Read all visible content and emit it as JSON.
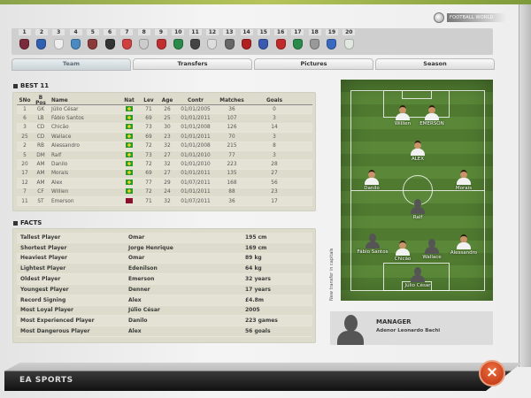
{
  "header": {
    "logo_text": "FOOTBALL WORLD"
  },
  "clubs": [
    {
      "num": "1",
      "color": "#7a2a3a"
    },
    {
      "num": "2",
      "color": "#3060b0"
    },
    {
      "num": "3",
      "color": "#eeeeee"
    },
    {
      "num": "4",
      "color": "#4a8ac0"
    },
    {
      "num": "5",
      "color": "#8a3a3a"
    },
    {
      "num": "6",
      "color": "#333333"
    },
    {
      "num": "7",
      "color": "#d04040"
    },
    {
      "num": "8",
      "color": "#cccccc"
    },
    {
      "num": "9",
      "color": "#c03030"
    },
    {
      "num": "10",
      "color": "#2a8a4a"
    },
    {
      "num": "11",
      "color": "#444444"
    },
    {
      "num": "12",
      "color": "#dddddd"
    },
    {
      "num": "13",
      "color": "#666666"
    },
    {
      "num": "14",
      "color": "#b02020"
    },
    {
      "num": "15",
      "color": "#3a5ab0"
    },
    {
      "num": "16",
      "color": "#c02a2a"
    },
    {
      "num": "17",
      "color": "#2a8a4a"
    },
    {
      "num": "18",
      "color": "#999999"
    },
    {
      "num": "19",
      "color": "#3a6ac0"
    },
    {
      "num": "20",
      "color": "#e0e8e0"
    }
  ],
  "tabs": [
    {
      "label": "Team",
      "active": true
    },
    {
      "label": "Transfers"
    },
    {
      "label": "Pictures"
    },
    {
      "label": "Season"
    }
  ],
  "best11": {
    "title": "BEST 11",
    "headers": [
      "SNo",
      "B Pos",
      "Name",
      "Nat",
      "Lev",
      "Age",
      "Contr",
      "Matches",
      "Goals"
    ],
    "rows": [
      {
        "sno": "1",
        "pos": "GK",
        "name": "Júlio César",
        "nat": "brazil-flag",
        "lev": "71",
        "age": "26",
        "contr": "01/01/2005",
        "matches": "36",
        "goals": "0"
      },
      {
        "sno": "6",
        "pos": "LB",
        "name": "Fábio Santos",
        "nat": "brazil-flag",
        "lev": "69",
        "age": "25",
        "contr": "01/01/2011",
        "matches": "107",
        "goals": "3"
      },
      {
        "sno": "3",
        "pos": "CD",
        "name": "Chicão",
        "nat": "brazil-flag",
        "lev": "73",
        "age": "30",
        "contr": "01/01/2008",
        "matches": "126",
        "goals": "14"
      },
      {
        "sno": "25",
        "pos": "CD",
        "name": "Wallace",
        "nat": "brazil-flag",
        "lev": "69",
        "age": "23",
        "contr": "01/01/2011",
        "matches": "70",
        "goals": "3"
      },
      {
        "sno": "2",
        "pos": "RB",
        "name": "Alessandro",
        "nat": "brazil-flag",
        "lev": "72",
        "age": "32",
        "contr": "01/01/2008",
        "matches": "215",
        "goals": "8"
      },
      {
        "sno": "5",
        "pos": "DM",
        "name": "Ralf",
        "nat": "brazil-flag",
        "lev": "73",
        "age": "27",
        "contr": "01/01/2010",
        "matches": "77",
        "goals": "3"
      },
      {
        "sno": "20",
        "pos": "AM",
        "name": "Danilo",
        "nat": "brazil-flag",
        "lev": "72",
        "age": "32",
        "contr": "01/01/2010",
        "matches": "223",
        "goals": "28"
      },
      {
        "sno": "17",
        "pos": "AM",
        "name": "Morais",
        "nat": "brazil-flag",
        "lev": "69",
        "age": "27",
        "contr": "01/01/2011",
        "matches": "135",
        "goals": "27"
      },
      {
        "sno": "12",
        "pos": "AM",
        "name": "Alex",
        "nat": "brazil-flag",
        "lev": "77",
        "age": "29",
        "contr": "01/07/2011",
        "matches": "168",
        "goals": "56"
      },
      {
        "sno": "7",
        "pos": "CF",
        "name": "Willien",
        "nat": "brazil-flag",
        "lev": "72",
        "age": "24",
        "contr": "01/01/2011",
        "matches": "88",
        "goals": "23"
      },
      {
        "sno": "11",
        "pos": "ST",
        "name": "Emerson",
        "nat": "other-flag",
        "lev": "71",
        "age": "32",
        "contr": "01/07/2011",
        "matches": "36",
        "goals": "17"
      }
    ]
  },
  "facts": {
    "title": "FACTS",
    "rows": [
      {
        "label": "Tallest Player",
        "player": "Omar",
        "value": "195 cm"
      },
      {
        "label": "Shortest Player",
        "player": "Jorge Henrique",
        "value": "169 cm"
      },
      {
        "label": "Heaviest Player",
        "player": "Omar",
        "value": "89 kg"
      },
      {
        "label": "Lightest Player",
        "player": "Edenilson",
        "value": "64 kg"
      },
      {
        "label": "Oldest Player",
        "player": "Emerson",
        "value": "32 years"
      },
      {
        "label": "Youngest Player",
        "player": "Denner",
        "value": "17 years"
      },
      {
        "label": "Record Signing",
        "player": "Alex",
        "value": "£4.8m"
      },
      {
        "label": "Most Loyal Player",
        "player": "Júlio César",
        "value": "2005"
      },
      {
        "label": "Most Experienced Player",
        "player": "Danilo",
        "value": "223 games"
      },
      {
        "label": "Most Dangerous Player",
        "player": "Alex",
        "value": "56 goals"
      }
    ]
  },
  "pitch": {
    "note": "New transfer in capitals",
    "players": [
      {
        "name": "Willien",
        "photo": true
      },
      {
        "name": "EMERSON",
        "photo": true
      },
      {
        "name": "ALEX",
        "photo": true
      },
      {
        "name": "Danilo",
        "photo": true
      },
      {
        "name": "Morais",
        "photo": true
      },
      {
        "name": "Ralf",
        "photo": false
      },
      {
        "name": "Fábio Santos",
        "photo": false
      },
      {
        "name": "Chicão",
        "photo": true
      },
      {
        "name": "Wallace",
        "photo": false
      },
      {
        "name": "Alessandro",
        "photo": true
      },
      {
        "name": "Júlio César",
        "photo": false
      }
    ]
  },
  "manager": {
    "title": "MANAGER",
    "name": "Adenor Leonardo Bachi"
  },
  "footer": {
    "brand": "EA SPORTS",
    "close_icon": "×"
  }
}
